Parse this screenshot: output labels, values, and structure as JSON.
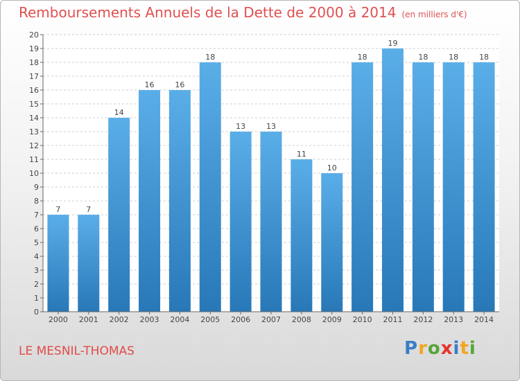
{
  "header": {
    "title": "Remboursements Annuels de la Dette de 2000 à 2014",
    "unit": "(en milliers d'€)"
  },
  "footer": {
    "commune": "LE MESNIL-THOMAS",
    "logo": {
      "letters": [
        "P",
        "r",
        "o",
        "x",
        "i",
        "t",
        "i"
      ],
      "colors": [
        "#3a7dc8",
        "#f2a51f",
        "#56a63b",
        "#e4332b",
        "#3a7dc8",
        "#f2a51f",
        "#56a63b"
      ]
    }
  },
  "colors": {
    "bar_top": "#5aaee8",
    "bar_bottom": "#2878b8",
    "title": "#e05050",
    "grid": "#cccccc"
  },
  "chart_data": {
    "type": "bar",
    "categories": [
      "2000",
      "2001",
      "2002",
      "2003",
      "2004",
      "2005",
      "2006",
      "2007",
      "2008",
      "2009",
      "2010",
      "2011",
      "2012",
      "2013",
      "2014"
    ],
    "values": [
      7,
      7,
      14,
      16,
      16,
      18,
      13,
      13,
      11,
      10,
      18,
      19,
      18,
      18,
      18
    ],
    "ylim": [
      0,
      20
    ],
    "yticks": [
      0,
      1,
      2,
      3,
      4,
      5,
      6,
      7,
      8,
      9,
      10,
      11,
      12,
      13,
      14,
      15,
      16,
      17,
      18,
      19,
      20
    ],
    "grid": true,
    "data_labels": true
  }
}
